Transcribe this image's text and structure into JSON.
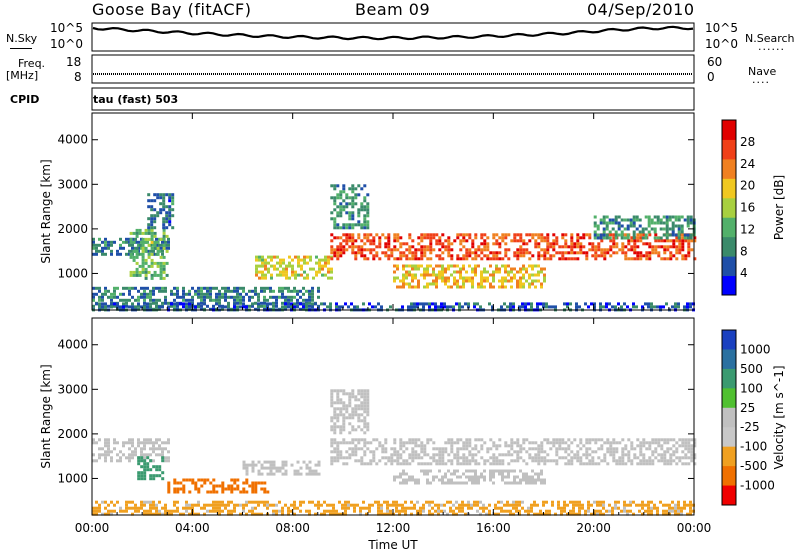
{
  "header": {
    "station": "Goose Bay (fitACF)",
    "beam": "Beam 09",
    "date": "04/Sep/2010"
  },
  "strip": {
    "nsky_label": "N.Sky",
    "nsearch_label": "N.Search",
    "nsearch_dots": "......",
    "freq_label": "Freq.",
    "freq_unit": "[MHz]",
    "nave_label": "Nave",
    "nave_dots": "....",
    "cpid_label": "CPID",
    "cpid_value": "tau (fast) 503",
    "noise_left_ticks": [
      "10^5",
      "10^0"
    ],
    "noise_right_ticks": [
      "10^5",
      "10^0"
    ],
    "freq_ticks": [
      "18",
      "8"
    ],
    "nave_ticks": [
      "60",
      "0"
    ]
  },
  "colors": {
    "power": [
      "#0000ff",
      "#1f4fa8",
      "#3a8a6a",
      "#52b06a",
      "#a8d040",
      "#f0c820",
      "#f08020",
      "#f04018",
      "#e00000"
    ],
    "velocity": [
      "#1a40c0",
      "#2a70a0",
      "#3a9a70",
      "#50c030",
      "#c0c0c0",
      "#c8c8c8",
      "#f0a020",
      "#f07000",
      "#f00000"
    ]
  },
  "chart_data": [
    {
      "type": "heatmap",
      "title": "",
      "xlabel": "",
      "ylabel": "Slant Range [km]",
      "x_tick_labels": [
        "00:00",
        "04:00",
        "08:00",
        "12:00",
        "16:00",
        "20:00",
        "00:00"
      ],
      "xlim": [
        0,
        24
      ],
      "y_ticks": [
        1000,
        2000,
        3000,
        4000
      ],
      "ylim": [
        180,
        4600
      ],
      "colorbar": {
        "label": "Power [dB]",
        "ticks": [
          4,
          8,
          12,
          16,
          20,
          24,
          28
        ],
        "range": [
          0,
          32
        ]
      },
      "regions": [
        {
          "t0": 0.0,
          "t1": 3.0,
          "r0": 1400,
          "r1": 1800,
          "level": 8
        },
        {
          "t0": 1.5,
          "t1": 3.0,
          "r0": 900,
          "r1": 2000,
          "level": 14
        },
        {
          "t0": 2.2,
          "t1": 3.2,
          "r0": 2000,
          "r1": 2800,
          "level": 7
        },
        {
          "t0": 0.0,
          "t1": 9.0,
          "r0": 200,
          "r1": 700,
          "level": 8
        },
        {
          "t0": 6.5,
          "t1": 9.5,
          "r0": 900,
          "r1": 1400,
          "level": 18
        },
        {
          "t0": 9.5,
          "t1": 24.0,
          "r0": 1300,
          "r1": 1900,
          "level": 26
        },
        {
          "t0": 9.5,
          "t1": 11.0,
          "r0": 2000,
          "r1": 3000,
          "level": 10
        },
        {
          "t0": 12.0,
          "t1": 18.0,
          "r0": 700,
          "r1": 1200,
          "level": 20
        },
        {
          "t0": 20.0,
          "t1": 24.0,
          "r0": 1800,
          "r1": 2300,
          "level": 10
        },
        {
          "t0": 0.0,
          "t1": 24.0,
          "r0": 180,
          "r1": 350,
          "level": 6
        }
      ]
    },
    {
      "type": "heatmap",
      "title": "",
      "xlabel": "Time UT",
      "ylabel": "Slant Range [km]",
      "x_tick_labels": [
        "00:00",
        "04:00",
        "08:00",
        "12:00",
        "16:00",
        "20:00",
        "00:00"
      ],
      "xlim": [
        0,
        24
      ],
      "y_ticks": [
        1000,
        2000,
        3000,
        4000
      ],
      "ylim": [
        180,
        4600
      ],
      "colorbar": {
        "label": "Velocity [m s^-1]",
        "ticks": [
          "1000",
          "500",
          "100",
          "25",
          "-25",
          "-100",
          "-500",
          "-1000"
        ]
      },
      "regions": [
        {
          "t0": 0.0,
          "t1": 3.0,
          "r0": 1400,
          "r1": 1900,
          "level": 0
        },
        {
          "t0": 1.8,
          "t1": 2.8,
          "r0": 1000,
          "r1": 1500,
          "level": 120
        },
        {
          "t0": 3.0,
          "t1": 7.0,
          "r0": 700,
          "r1": 1000,
          "level": -120
        },
        {
          "t0": 6.0,
          "t1": 9.0,
          "r0": 1100,
          "r1": 1400,
          "level": 0
        },
        {
          "t0": 9.5,
          "t1": 24.0,
          "r0": 1300,
          "r1": 1900,
          "level": 0
        },
        {
          "t0": 9.5,
          "t1": 11.0,
          "r0": 2000,
          "r1": 3000,
          "level": 0
        },
        {
          "t0": 12.0,
          "t1": 18.0,
          "r0": 900,
          "r1": 1200,
          "level": 0
        },
        {
          "t0": 0.0,
          "t1": 24.0,
          "r0": 180,
          "r1": 500,
          "level": -40
        }
      ]
    }
  ]
}
